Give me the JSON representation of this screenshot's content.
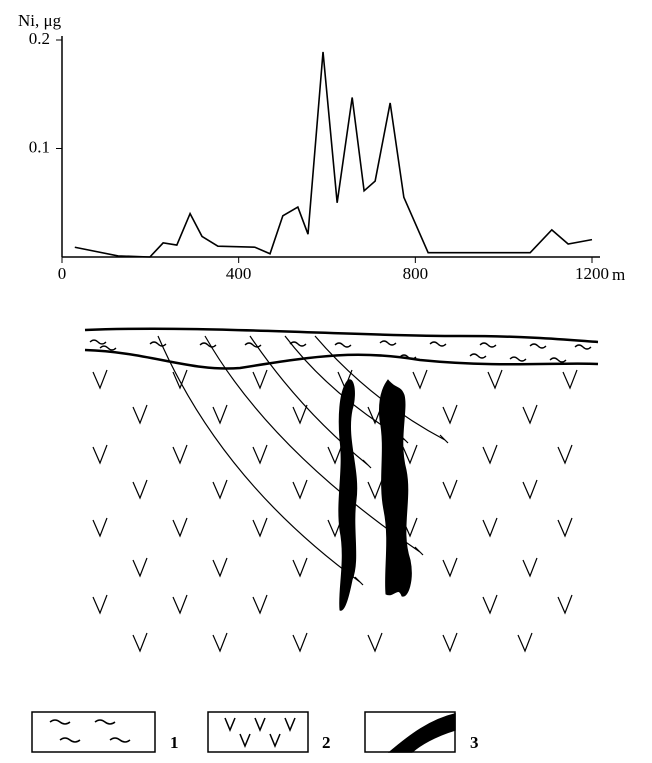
{
  "chart_data": {
    "type": "line",
    "y_label": "Ni, μg",
    "x_unit": "m",
    "x": [
      29,
      127,
      199,
      229,
      260,
      290,
      317,
      353,
      437,
      471,
      500,
      534,
      557,
      591,
      623,
      657,
      684,
      709,
      743,
      774,
      829,
      1060,
      1109,
      1146,
      1200
    ],
    "series": [
      {
        "color": "#000000",
        "values": [
          0.009,
          0.001,
          0,
          0.013,
          0.011,
          0.04,
          0.019,
          0.01,
          0.009,
          0.003,
          0.038,
          0.046,
          0.021,
          0.189,
          0.05,
          0.147,
          0.061,
          0.07,
          0.142,
          0.055,
          0.004,
          0.004,
          0.025,
          0.012,
          0.016
        ]
      }
    ],
    "xlim": [
      0,
      1200
    ],
    "xticks": [
      0,
      400,
      800,
      1200
    ],
    "ylim": [
      0,
      0.2
    ],
    "yticks": [
      0.1,
      0.2
    ]
  },
  "diagram": {
    "legend": [
      "1",
      "2",
      "3"
    ]
  }
}
